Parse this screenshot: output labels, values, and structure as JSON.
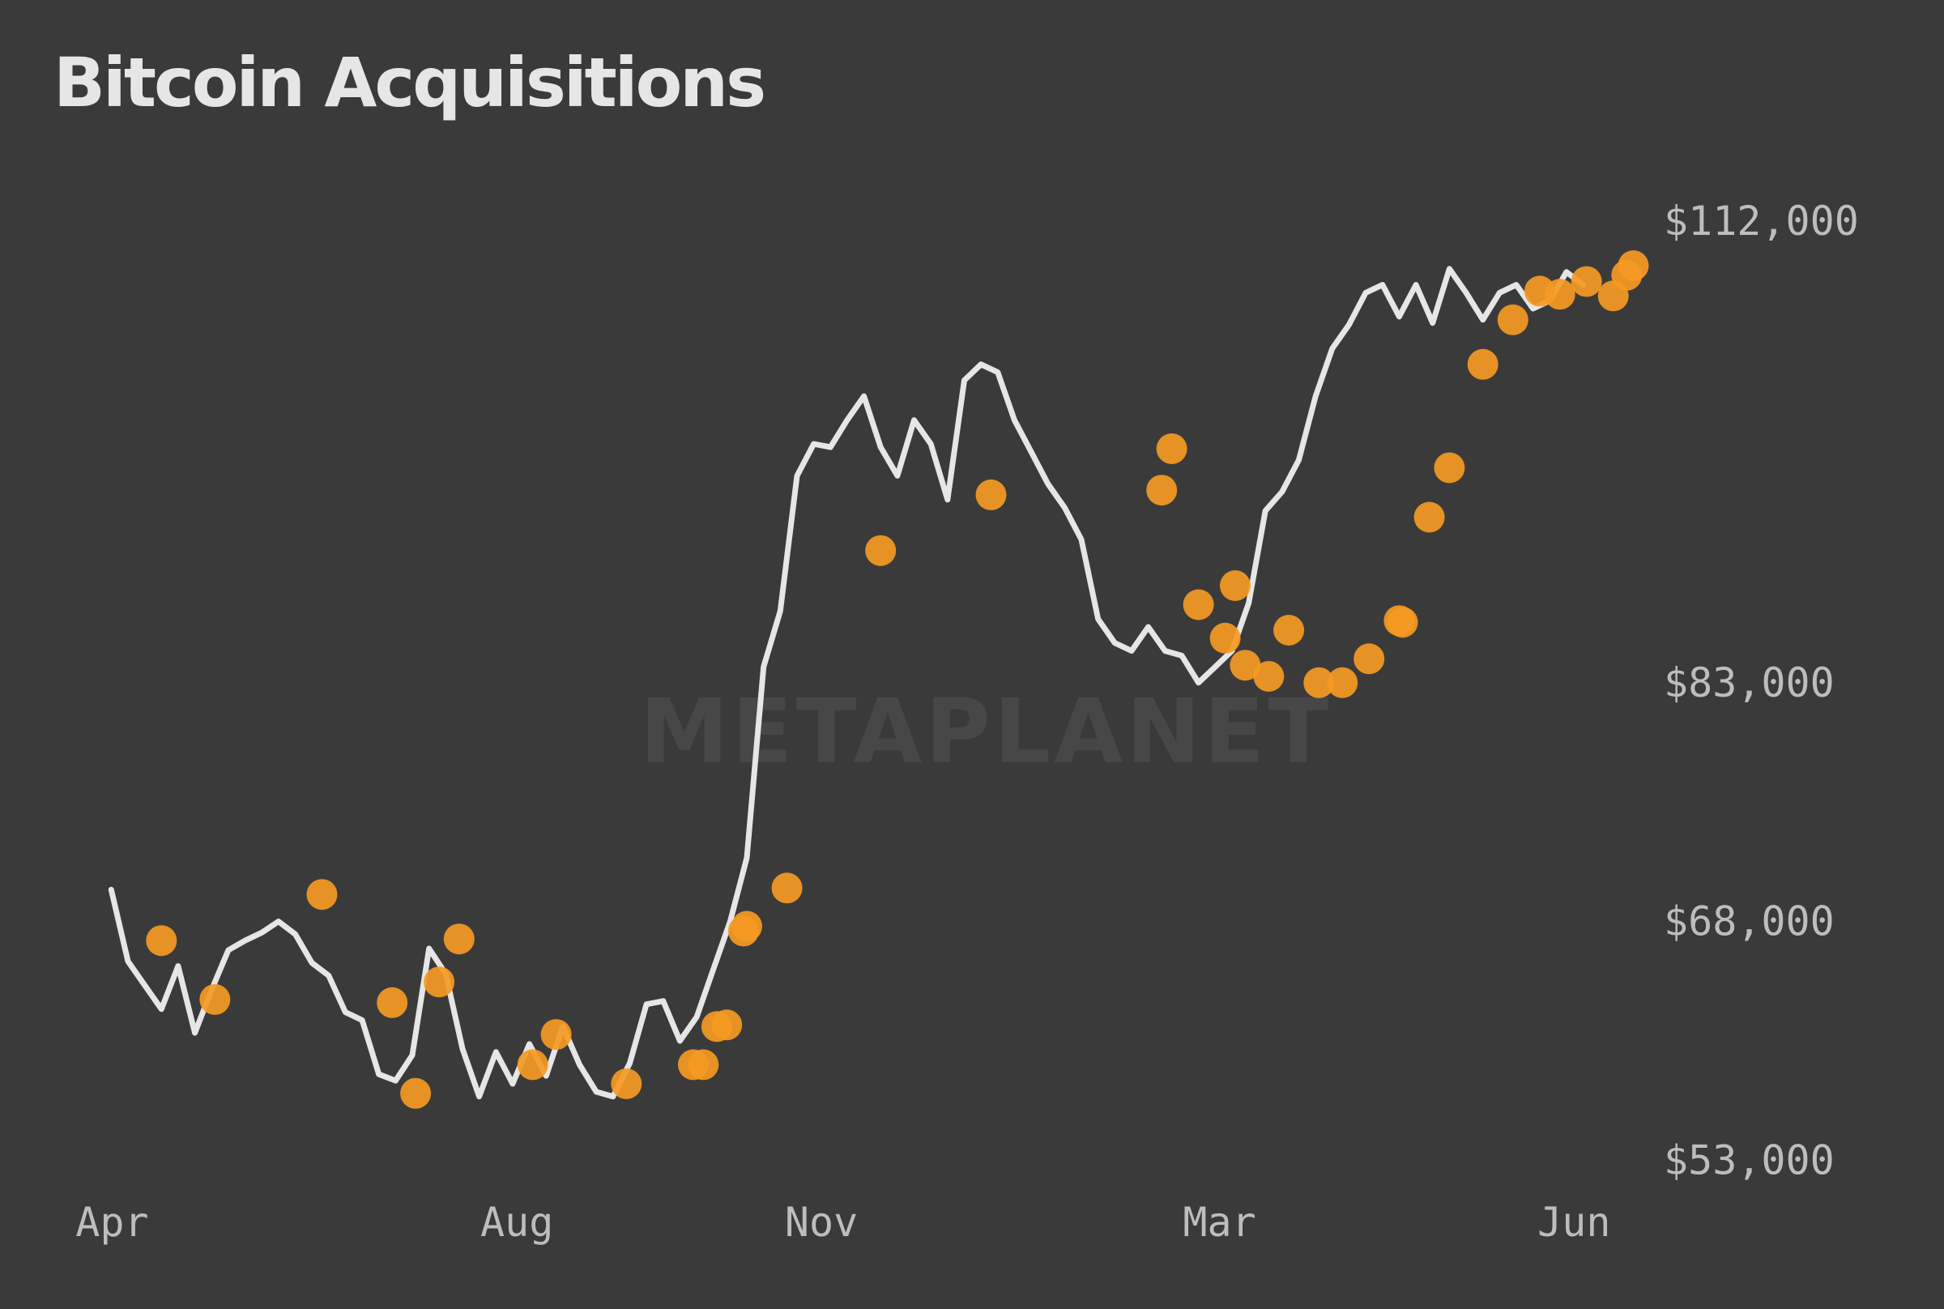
{
  "title": "Bitcoin Acquisitions",
  "watermark": "METAPLANET",
  "colors": {
    "background": "#3a3a3a",
    "line": "#e6e6e6",
    "marker": "#f59a23",
    "tick_text": "#bdbdbd"
  },
  "chart_data": {
    "type": "line",
    "title": "Bitcoin Acquisitions",
    "xlabel": "",
    "ylabel": "",
    "x_ticks": [
      {
        "label": "Apr",
        "x": 0
      },
      {
        "label": "Aug",
        "x": 121
      },
      {
        "label": "Nov",
        "x": 212
      },
      {
        "label": "Mar",
        "x": 331
      },
      {
        "label": "Jun",
        "x": 437
      }
    ],
    "y_ticks": [
      {
        "label": "$112,000",
        "value": 112000
      },
      {
        "label": "$83,000",
        "value": 83000
      },
      {
        "label": "$68,000",
        "value": 68000
      },
      {
        "label": "$53,000",
        "value": 53000
      }
    ],
    "xlim": [
      -10,
      451
    ],
    "ylim": [
      52000,
      115000
    ],
    "y_axis_position": "right",
    "grid": false,
    "legend": "none",
    "series": [
      {
        "type": "line",
        "x": [
          0,
          5,
          10,
          15,
          20,
          25,
          30,
          35,
          40,
          45,
          50,
          55,
          60,
          65,
          70,
          75,
          80,
          85,
          90,
          95,
          100,
          105,
          110,
          115,
          120,
          125,
          130,
          135,
          140,
          145,
          150,
          155,
          160,
          165,
          170,
          175,
          180,
          185,
          190,
          195,
          200,
          205,
          210,
          215,
          220,
          225,
          230,
          235,
          240,
          245,
          250,
          255,
          260,
          265,
          270,
          275,
          280,
          285,
          290,
          295,
          300,
          305,
          310,
          315,
          320,
          325,
          330,
          335,
          340,
          345,
          350,
          355,
          360,
          365,
          370,
          375,
          380,
          385,
          390,
          395,
          400,
          405,
          410,
          415,
          420,
          425,
          430,
          435,
          440
        ],
        "y": [
          70000,
          65500,
          64000,
          62500,
          65200,
          61000,
          63700,
          66200,
          66800,
          67300,
          68000,
          67200,
          65400,
          64600,
          62300,
          61800,
          58400,
          58000,
          59600,
          66300,
          64700,
          60000,
          57000,
          59800,
          57800,
          60300,
          58300,
          61400,
          59000,
          57300,
          57000,
          59100,
          62800,
          63000,
          60500,
          62000,
          65000,
          68000,
          72000,
          84000,
          87500,
          96000,
          98000,
          97800,
          99500,
          101000,
          97800,
          96000,
          99500,
          98000,
          94500,
          102000,
          103000,
          102500,
          99500,
          97500,
          95500,
          94000,
          92000,
          87000,
          85500,
          85000,
          86500,
          85000,
          84700,
          83000,
          84000,
          85000,
          88000,
          93800,
          95000,
          97000,
          101000,
          104000,
          105500,
          107500,
          108000,
          106000,
          108000,
          105600,
          109000,
          107500,
          105800,
          107500,
          108000,
          106500,
          107000,
          108800,
          108000
        ]
      },
      {
        "type": "scatter",
        "name": "Acquisitions",
        "x": [
          15,
          31,
          63,
          84,
          91,
          98,
          104,
          126,
          133,
          154,
          174,
          177,
          181,
          184,
          189,
          190,
          202,
          230,
          263,
          314,
          317,
          325,
          333,
          336,
          339,
          346,
          352,
          361,
          368,
          376,
          385,
          386,
          394,
          400,
          410,
          419,
          427,
          433,
          441,
          449,
          453,
          455
        ],
        "y": [
          66800,
          63100,
          69700,
          62900,
          57200,
          64200,
          66900,
          59000,
          60900,
          57800,
          59000,
          59000,
          61400,
          61500,
          67400,
          67700,
          70100,
          91300,
          94800,
          95100,
          97700,
          87900,
          85800,
          89100,
          84100,
          83400,
          86300,
          83000,
          83000,
          84500,
          86900,
          86800,
          93400,
          96500,
          103000,
          105800,
          107600,
          107400,
          108200,
          107300,
          108600,
          109200
        ]
      }
    ]
  }
}
